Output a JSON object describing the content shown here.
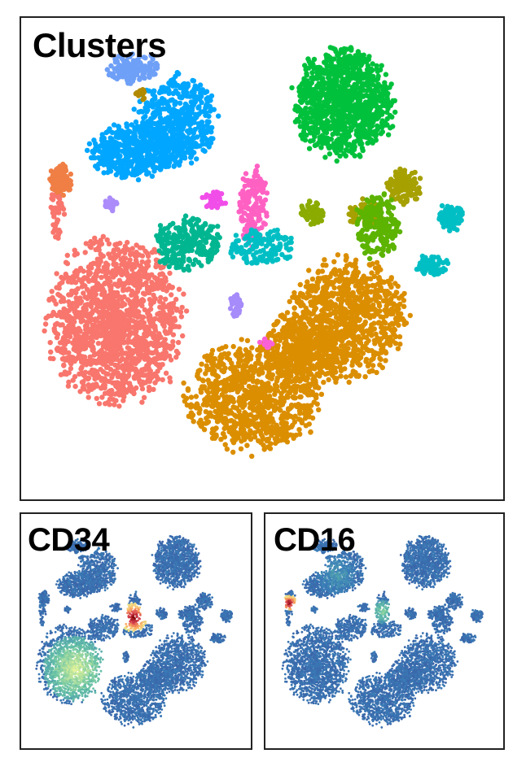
{
  "chart_data": [
    {
      "type": "scatter",
      "title": "Clusters",
      "xlim": [
        0,
        100
      ],
      "ylim": [
        0,
        100
      ],
      "grid": false,
      "legend": "none",
      "clusters": [
        {
          "color": "#f8766d",
          "shape": "blob",
          "cx": 18,
          "cy": 32,
          "rx": 15,
          "ry": 18,
          "n": 1500
        },
        {
          "color": "#f8766d",
          "shape": "blob",
          "cx": 4.5,
          "cy": 58,
          "rx": 1.5,
          "ry": 7,
          "n": 60
        },
        {
          "color": "#f07f45",
          "shape": "blob",
          "cx": 5.5,
          "cy": 64.5,
          "rx": 2.5,
          "ry": 3.5,
          "n": 90
        },
        {
          "color": "#db8e00",
          "shape": "blob",
          "cx": 72,
          "cy": 33,
          "rx": 13,
          "ry": 13,
          "n": 900
        },
        {
          "color": "#db8e00",
          "shape": "blob",
          "cx": 50,
          "cy": 15,
          "rx": 15,
          "ry": 12,
          "n": 900
        },
        {
          "color": "#db8e00",
          "shape": "blob",
          "cx": 62,
          "cy": 25,
          "rx": 10,
          "ry": 9,
          "n": 400
        },
        {
          "color": "#00c13c",
          "shape": "blob",
          "cx": 71,
          "cy": 82,
          "rx": 11,
          "ry": 12,
          "n": 1000
        },
        {
          "color": "#00a6ff",
          "shape": "blob",
          "cx": 32,
          "cy": 78,
          "rx": 9,
          "ry": 10,
          "n": 500
        },
        {
          "color": "#00a6ff",
          "shape": "blob",
          "cx": 22,
          "cy": 71,
          "rx": 10,
          "ry": 6,
          "n": 450
        },
        {
          "color": "#6fa0f7",
          "shape": "blob",
          "cx": 22,
          "cy": 90,
          "rx": 6,
          "ry": 3.5,
          "n": 130
        },
        {
          "color": "#b28a00",
          "shape": "blob",
          "cx": 24,
          "cy": 84,
          "rx": 1.2,
          "ry": 1.5,
          "n": 15
        },
        {
          "color": "#ff61c3",
          "shape": "blob",
          "cx": 50,
          "cy": 58,
          "rx": 3.5,
          "ry": 9,
          "n": 180
        },
        {
          "color": "#f14ee9",
          "shape": "blob",
          "cx": 41,
          "cy": 60,
          "rx": 2.5,
          "ry": 2,
          "n": 45
        },
        {
          "color": "#00b691",
          "shape": "blob",
          "cx": 35,
          "cy": 50,
          "rx": 8,
          "ry": 6,
          "n": 260
        },
        {
          "color": "#00bfc4",
          "shape": "blob",
          "cx": 52,
          "cy": 49,
          "rx": 7,
          "ry": 4,
          "n": 150
        },
        {
          "color": "#00bfc4",
          "shape": "blob",
          "cx": 96,
          "cy": 56,
          "rx": 3,
          "ry": 3,
          "n": 80
        },
        {
          "color": "#00bfc4",
          "shape": "blob",
          "cx": 91.5,
          "cy": 45,
          "rx": 4,
          "ry": 2.5,
          "n": 70
        },
        {
          "color": "#a6a000",
          "shape": "blob",
          "cx": 85,
          "cy": 63,
          "rx": 4,
          "ry": 4,
          "n": 120
        },
        {
          "color": "#a6a000",
          "shape": "blob",
          "cx": 76,
          "cy": 57,
          "rx": 4,
          "ry": 3,
          "n": 80
        },
        {
          "color": "#8bab00",
          "shape": "blob",
          "cx": 64,
          "cy": 57,
          "rx": 3,
          "ry": 2.5,
          "n": 60
        },
        {
          "color": "#5cb300",
          "shape": "blob",
          "cx": 79,
          "cy": 54,
          "rx": 5,
          "ry": 7,
          "n": 200
        },
        {
          "color": "#ab8cfa",
          "shape": "blob",
          "cx": 17,
          "cy": 59,
          "rx": 1.5,
          "ry": 1.5,
          "n": 30
        },
        {
          "color": "#a68bfb",
          "shape": "blob",
          "cx": 46,
          "cy": 36,
          "rx": 1.5,
          "ry": 2.5,
          "n": 30
        },
        {
          "color": "#fb61d7",
          "shape": "blob",
          "cx": 53,
          "cy": 27,
          "rx": 2,
          "ry": 1.2,
          "n": 12
        }
      ]
    },
    {
      "type": "scatter",
      "title": "CD34",
      "colorscale": [
        "#3b4c9a",
        "#3a7eb8",
        "#66c2a5",
        "#e6f598",
        "#fdae61",
        "#d53e4f",
        "#7a0000"
      ],
      "hotspots": [
        {
          "cx": 50,
          "cy": 55,
          "r": 7,
          "level": 0.95
        },
        {
          "cx": 21,
          "cy": 30,
          "r": 16,
          "level": 0.45
        }
      ]
    },
    {
      "type": "scatter",
      "title": "CD16",
      "colorscale": [
        "#3b4c9a",
        "#3a7eb8",
        "#66c2a5",
        "#e6f598",
        "#fdae61",
        "#d53e4f",
        "#7a0000"
      ],
      "hotspots": [
        {
          "cx": 5,
          "cy": 62,
          "r": 4,
          "level": 0.95
        },
        {
          "cx": 32,
          "cy": 96,
          "r": 5,
          "level": 0.9
        },
        {
          "cx": 50,
          "cy": 58,
          "r": 6,
          "level": 0.35
        },
        {
          "cx": 28,
          "cy": 76,
          "r": 10,
          "level": 0.2
        }
      ]
    }
  ]
}
